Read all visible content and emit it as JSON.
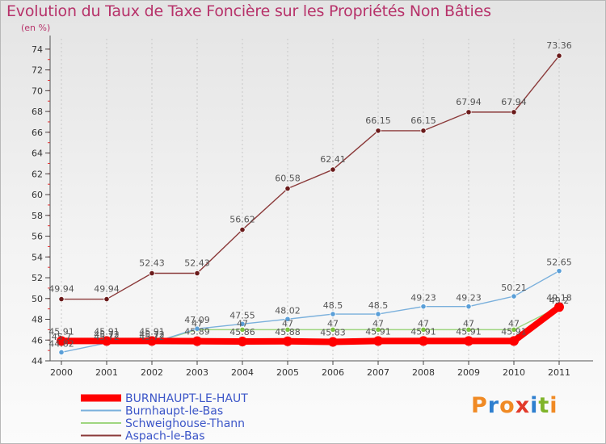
{
  "title": "Evolution du Taux de Taxe Foncière sur les Propriétés Non Bâties",
  "unit": "(en %)",
  "logo": {
    "letters": [
      "P",
      "r",
      "o",
      "x",
      "i",
      "t",
      "i"
    ],
    "colors": [
      "#f08a24",
      "#2e7fcf",
      "#f08a24",
      "#e23a2a",
      "#2e7fcf",
      "#7fb42a",
      "#f08a24"
    ]
  },
  "chart_data": {
    "type": "line",
    "x": [
      "2000",
      "2001",
      "2002",
      "2003",
      "2004",
      "2005",
      "2006",
      "2007",
      "2008",
      "2009",
      "2010",
      "2011"
    ],
    "ylim": [
      44,
      75
    ],
    "yticks": [
      44,
      46,
      48,
      50,
      52,
      54,
      56,
      58,
      60,
      62,
      64,
      66,
      68,
      70,
      72,
      74
    ],
    "legend_position": "bottom-left",
    "series": [
      {
        "name": "BURNHAUPT-LE-HAUT",
        "color": "#ff0000",
        "values": [
          45.91,
          45.91,
          45.91,
          45.89,
          45.86,
          45.88,
          45.83,
          45.91,
          45.91,
          45.91,
          45.91,
          49.18
        ],
        "labels": [
          "45.91",
          "45.91",
          "45.91",
          "45.89",
          "45.86",
          "45.88",
          "45.83",
          "45.91",
          "45.91",
          "45.91",
          "45.91",
          "49.18"
        ]
      },
      {
        "name": "Burnhaupt-le-Bas",
        "color": "#7ab0dc",
        "values": [
          44.82,
          45.72,
          45.72,
          47.09,
          47.55,
          48.02,
          48.5,
          48.5,
          49.23,
          49.23,
          50.21,
          52.65
        ],
        "labels": [
          "44.82",
          "45.72",
          "45.72",
          "47.09",
          "47.55",
          "48.02",
          "48.5",
          "48.5",
          "49.23",
          "49.23",
          "50.21",
          "52.65"
        ]
      },
      {
        "name": "Schweighouse-Thann",
        "color": "#9fd680",
        "values": [
          45.7,
          45.72,
          45.72,
          47,
          47,
          47,
          47,
          47,
          47,
          47,
          47,
          49.2
        ],
        "labels": [
          "45.7",
          "45.72",
          "45.72",
          "47",
          "47",
          "47",
          "47",
          "47",
          "47",
          "47",
          "47",
          "49.2"
        ]
      },
      {
        "name": "Aspach-le-Bas",
        "color": "#8b3a3a",
        "values": [
          49.94,
          49.94,
          52.43,
          52.43,
          56.62,
          60.58,
          62.41,
          66.15,
          66.15,
          67.94,
          67.94,
          73.36
        ],
        "labels": [
          "49.94",
          "49.94",
          "52.43",
          "52.43",
          "56.62",
          "60.58",
          "62.41",
          "66.15",
          "66.15",
          "67.94",
          "67.94",
          "73.36"
        ]
      }
    ]
  }
}
